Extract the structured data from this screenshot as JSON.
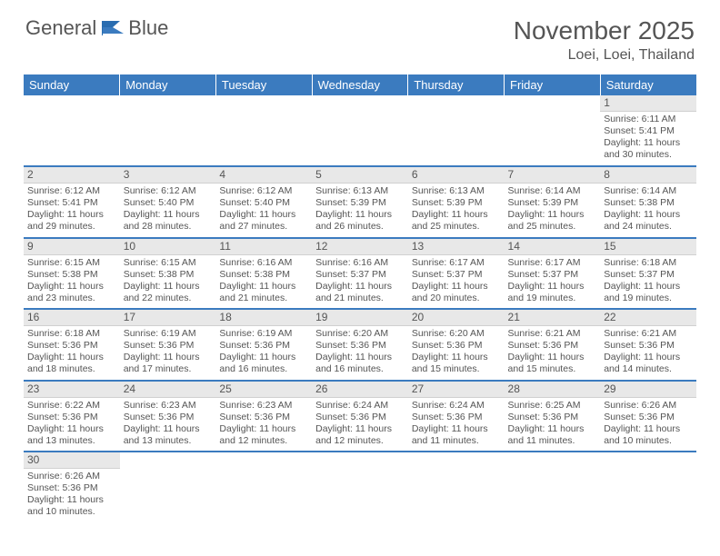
{
  "brand": {
    "part1": "General",
    "part2": "Blue"
  },
  "title": "November 2025",
  "location": "Loei, Loei, Thailand",
  "colors": {
    "header_bg": "#3b7bbf",
    "header_text": "#ffffff",
    "daynum_bg": "#e8e8e8",
    "body_text": "#555555",
    "row_divider": "#3b7bbf"
  },
  "weekdays": [
    "Sunday",
    "Monday",
    "Tuesday",
    "Wednesday",
    "Thursday",
    "Friday",
    "Saturday"
  ],
  "first_weekday_index": 6,
  "days": [
    {
      "n": 1,
      "sunrise": "6:11 AM",
      "sunset": "5:41 PM",
      "daylight": "11 hours and 30 minutes."
    },
    {
      "n": 2,
      "sunrise": "6:12 AM",
      "sunset": "5:41 PM",
      "daylight": "11 hours and 29 minutes."
    },
    {
      "n": 3,
      "sunrise": "6:12 AM",
      "sunset": "5:40 PM",
      "daylight": "11 hours and 28 minutes."
    },
    {
      "n": 4,
      "sunrise": "6:12 AM",
      "sunset": "5:40 PM",
      "daylight": "11 hours and 27 minutes."
    },
    {
      "n": 5,
      "sunrise": "6:13 AM",
      "sunset": "5:39 PM",
      "daylight": "11 hours and 26 minutes."
    },
    {
      "n": 6,
      "sunrise": "6:13 AM",
      "sunset": "5:39 PM",
      "daylight": "11 hours and 25 minutes."
    },
    {
      "n": 7,
      "sunrise": "6:14 AM",
      "sunset": "5:39 PM",
      "daylight": "11 hours and 25 minutes."
    },
    {
      "n": 8,
      "sunrise": "6:14 AM",
      "sunset": "5:38 PM",
      "daylight": "11 hours and 24 minutes."
    },
    {
      "n": 9,
      "sunrise": "6:15 AM",
      "sunset": "5:38 PM",
      "daylight": "11 hours and 23 minutes."
    },
    {
      "n": 10,
      "sunrise": "6:15 AM",
      "sunset": "5:38 PM",
      "daylight": "11 hours and 22 minutes."
    },
    {
      "n": 11,
      "sunrise": "6:16 AM",
      "sunset": "5:38 PM",
      "daylight": "11 hours and 21 minutes."
    },
    {
      "n": 12,
      "sunrise": "6:16 AM",
      "sunset": "5:37 PM",
      "daylight": "11 hours and 21 minutes."
    },
    {
      "n": 13,
      "sunrise": "6:17 AM",
      "sunset": "5:37 PM",
      "daylight": "11 hours and 20 minutes."
    },
    {
      "n": 14,
      "sunrise": "6:17 AM",
      "sunset": "5:37 PM",
      "daylight": "11 hours and 19 minutes."
    },
    {
      "n": 15,
      "sunrise": "6:18 AM",
      "sunset": "5:37 PM",
      "daylight": "11 hours and 19 minutes."
    },
    {
      "n": 16,
      "sunrise": "6:18 AM",
      "sunset": "5:36 PM",
      "daylight": "11 hours and 18 minutes."
    },
    {
      "n": 17,
      "sunrise": "6:19 AM",
      "sunset": "5:36 PM",
      "daylight": "11 hours and 17 minutes."
    },
    {
      "n": 18,
      "sunrise": "6:19 AM",
      "sunset": "5:36 PM",
      "daylight": "11 hours and 16 minutes."
    },
    {
      "n": 19,
      "sunrise": "6:20 AM",
      "sunset": "5:36 PM",
      "daylight": "11 hours and 16 minutes."
    },
    {
      "n": 20,
      "sunrise": "6:20 AM",
      "sunset": "5:36 PM",
      "daylight": "11 hours and 15 minutes."
    },
    {
      "n": 21,
      "sunrise": "6:21 AM",
      "sunset": "5:36 PM",
      "daylight": "11 hours and 15 minutes."
    },
    {
      "n": 22,
      "sunrise": "6:21 AM",
      "sunset": "5:36 PM",
      "daylight": "11 hours and 14 minutes."
    },
    {
      "n": 23,
      "sunrise": "6:22 AM",
      "sunset": "5:36 PM",
      "daylight": "11 hours and 13 minutes."
    },
    {
      "n": 24,
      "sunrise": "6:23 AM",
      "sunset": "5:36 PM",
      "daylight": "11 hours and 13 minutes."
    },
    {
      "n": 25,
      "sunrise": "6:23 AM",
      "sunset": "5:36 PM",
      "daylight": "11 hours and 12 minutes."
    },
    {
      "n": 26,
      "sunrise": "6:24 AM",
      "sunset": "5:36 PM",
      "daylight": "11 hours and 12 minutes."
    },
    {
      "n": 27,
      "sunrise": "6:24 AM",
      "sunset": "5:36 PM",
      "daylight": "11 hours and 11 minutes."
    },
    {
      "n": 28,
      "sunrise": "6:25 AM",
      "sunset": "5:36 PM",
      "daylight": "11 hours and 11 minutes."
    },
    {
      "n": 29,
      "sunrise": "6:26 AM",
      "sunset": "5:36 PM",
      "daylight": "11 hours and 10 minutes."
    },
    {
      "n": 30,
      "sunrise": "6:26 AM",
      "sunset": "5:36 PM",
      "daylight": "11 hours and 10 minutes."
    }
  ],
  "labels": {
    "sunrise": "Sunrise:",
    "sunset": "Sunset:",
    "daylight": "Daylight:"
  }
}
